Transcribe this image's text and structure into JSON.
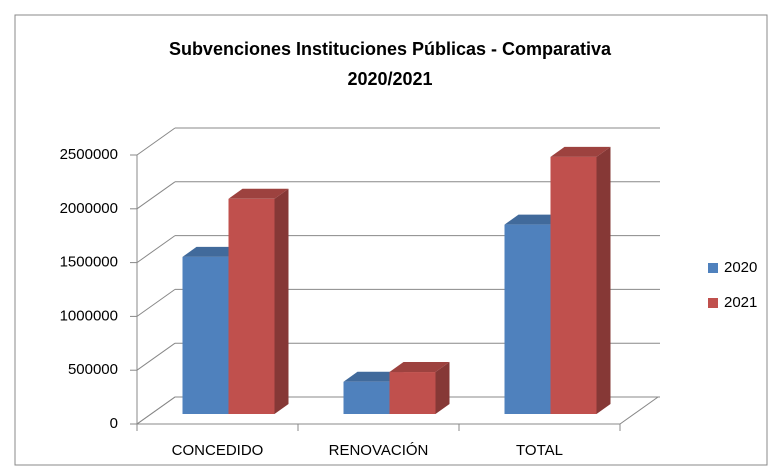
{
  "chart_data": {
    "type": "bar3d",
    "title": [
      "Subvenciones Instituciones Públicas - Comparativa",
      "2020/2021"
    ],
    "categories": [
      "CONCEDIDO",
      "RENOVACIÓN",
      "TOTAL"
    ],
    "series": [
      {
        "name": "2020",
        "color": "#4f81bd",
        "values": [
          1460000,
          300000,
          1760000
        ]
      },
      {
        "name": "2021",
        "color": "#c0504d",
        "values": [
          2000000,
          390000,
          2390000
        ]
      }
    ],
    "ylim": [
      0,
      2500000
    ],
    "yticks": [
      0,
      500000,
      1000000,
      1500000,
      2000000,
      2500000
    ],
    "grid": true,
    "legend": "right"
  }
}
